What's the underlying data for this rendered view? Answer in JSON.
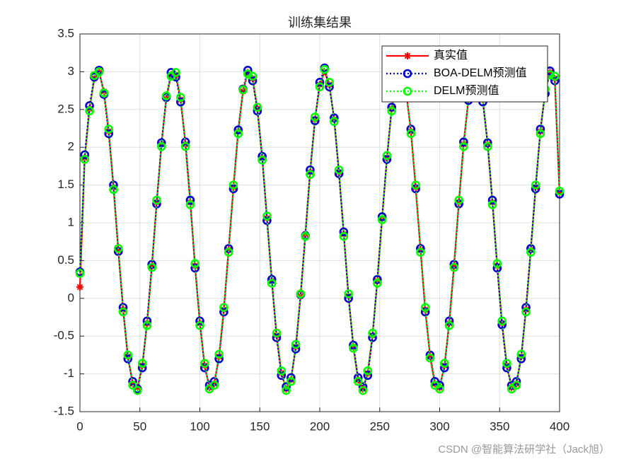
{
  "chart_data": {
    "type": "line",
    "title": "训练集结果",
    "x": [
      0,
      4,
      8,
      12,
      16,
      20,
      24,
      28,
      32,
      36,
      40,
      44,
      48,
      52,
      56,
      60,
      64,
      68,
      72,
      76,
      80,
      84,
      88,
      92,
      96,
      100,
      104,
      108,
      112,
      116,
      120,
      124,
      128,
      132,
      136,
      140,
      144,
      148,
      152,
      156,
      160,
      164,
      168,
      172,
      176,
      180,
      184,
      188,
      192,
      196,
      200,
      204,
      208,
      212,
      216,
      220,
      224,
      228,
      232,
      236,
      240,
      244,
      248,
      252,
      256,
      260,
      264,
      268,
      272,
      276,
      280,
      284,
      288,
      292,
      296,
      300,
      304,
      308,
      312,
      316,
      320,
      324,
      328,
      332,
      336,
      340,
      344,
      348,
      352,
      356,
      360,
      364,
      368,
      372,
      376,
      380,
      384,
      388,
      392,
      396,
      400
    ],
    "series": [
      {
        "name": "真实值",
        "color": "#ff0000",
        "marker": "star",
        "dash": "solid",
        "values": [
          0.15,
          1.86,
          2.51,
          2.91,
          2.99,
          2.74,
          2.21,
          1.47,
          0.64,
          -0.15,
          -0.77,
          -1.13,
          -1.18,
          -0.89,
          -0.33,
          0.43,
          1.27,
          2.04,
          2.64,
          2.96,
          2.96,
          2.63,
          2.04,
          1.27,
          0.43,
          -0.33,
          -0.89,
          -1.18,
          -1.13,
          -0.77,
          -0.15,
          0.64,
          1.47,
          2.21,
          2.74,
          2.99,
          2.91,
          2.51,
          1.86,
          1.06,
          0.23,
          -0.49,
          -0.99,
          -1.2,
          -1.08,
          -0.64,
          0.03,
          0.85,
          1.67,
          2.37,
          2.83,
          3.0,
          2.83,
          2.37,
          1.67,
          0.85,
          0.03,
          -0.64,
          -1.08,
          -1.2,
          -0.99,
          -0.49,
          0.23,
          1.06,
          1.86,
          2.51,
          2.91,
          2.99,
          2.74,
          2.21,
          1.47,
          0.64,
          -0.15,
          -0.77,
          -1.13,
          -1.18,
          -0.89,
          -0.33,
          0.43,
          1.27,
          2.04,
          2.64,
          2.96,
          2.96,
          2.63,
          2.04,
          1.27,
          0.43,
          -0.33,
          -0.89,
          -1.18,
          -1.13,
          -0.77,
          -0.15,
          0.64,
          1.47,
          2.21,
          2.74,
          2.99,
          2.91,
          1.4
        ]
      },
      {
        "name": "BOA-DELM预测值",
        "color": "#0000cc",
        "marker": "circle",
        "dash": "dotted",
        "values": [
          0.35,
          1.9,
          2.55,
          2.93,
          3.02,
          2.7,
          2.18,
          1.5,
          0.62,
          -0.12,
          -0.8,
          -1.1,
          -1.2,
          -0.92,
          -0.3,
          0.45,
          1.25,
          2.06,
          2.66,
          2.99,
          2.93,
          2.6,
          2.07,
          1.3,
          0.4,
          -0.3,
          -0.92,
          -1.15,
          -1.1,
          -0.8,
          -0.18,
          0.66,
          1.45,
          2.23,
          2.77,
          3.02,
          2.88,
          2.48,
          1.88,
          1.03,
          0.25,
          -0.52,
          -1.02,
          -1.17,
          -1.05,
          -0.67,
          0.05,
          0.83,
          1.7,
          2.35,
          2.86,
          3.05,
          2.8,
          2.39,
          1.65,
          0.88,
          0.0,
          -0.62,
          -1.05,
          -1.17,
          -1.02,
          -0.52,
          0.25,
          1.08,
          1.84,
          2.53,
          2.94,
          2.96,
          2.71,
          2.24,
          1.45,
          0.66,
          -0.18,
          -0.75,
          -1.1,
          -1.15,
          -0.92,
          -0.3,
          0.45,
          1.25,
          2.07,
          2.62,
          2.98,
          2.94,
          2.6,
          2.06,
          1.3,
          0.4,
          -0.35,
          -0.92,
          -1.15,
          -1.1,
          -0.8,
          -0.12,
          0.66,
          1.45,
          2.24,
          2.71,
          3.01,
          2.88,
          1.38
        ]
      },
      {
        "name": "DELM预测值",
        "color": "#00ff00",
        "marker": "circle",
        "dash": "dotted",
        "values": [
          0.33,
          1.84,
          2.48,
          2.95,
          3.0,
          2.72,
          2.24,
          1.44,
          0.66,
          -0.18,
          -0.75,
          -1.15,
          -1.22,
          -0.86,
          -0.36,
          0.41,
          1.3,
          2.01,
          2.68,
          2.94,
          2.99,
          2.66,
          2.01,
          1.24,
          0.46,
          -0.36,
          -0.86,
          -1.2,
          -1.15,
          -0.74,
          -0.12,
          0.61,
          1.5,
          2.18,
          2.76,
          2.97,
          2.94,
          2.53,
          1.83,
          1.09,
          0.2,
          -0.46,
          -0.96,
          -1.22,
          -1.1,
          -0.61,
          0.06,
          0.82,
          1.64,
          2.4,
          2.8,
          3.03,
          2.86,
          2.34,
          1.7,
          0.82,
          0.06,
          -0.66,
          -1.1,
          -1.22,
          -0.96,
          -0.46,
          0.2,
          1.04,
          1.89,
          2.48,
          2.89,
          3.01,
          2.76,
          2.18,
          1.5,
          0.61,
          -0.12,
          -0.79,
          -1.15,
          -1.2,
          -0.86,
          -0.36,
          0.41,
          1.3,
          2.01,
          2.67,
          2.94,
          2.99,
          2.66,
          2.01,
          1.24,
          0.46,
          -0.3,
          -0.86,
          -1.2,
          -1.15,
          -0.74,
          -0.18,
          0.61,
          1.5,
          2.18,
          2.77,
          2.96,
          2.94,
          1.42
        ]
      }
    ],
    "xlim": [
      0,
      400
    ],
    "xticks": [
      0,
      50,
      100,
      150,
      200,
      250,
      300,
      350,
      400
    ],
    "ylim": [
      -1.5,
      3.5
    ],
    "yticks": [
      -1.5,
      -1,
      -0.5,
      0,
      0.5,
      1,
      1.5,
      2,
      2.5,
      3,
      3.5
    ],
    "grid": true,
    "legend": "upper right",
    "watermark": "CSDN @智能算法研学社（Jack旭）"
  }
}
